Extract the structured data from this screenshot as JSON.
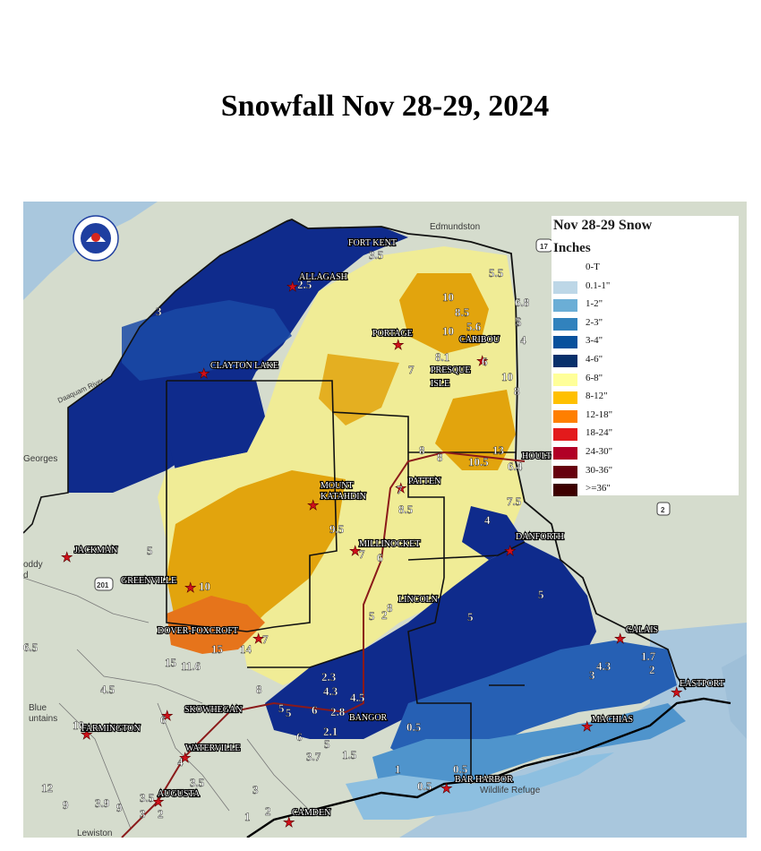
{
  "title": "Snowfall Nov 28-29, 2024",
  "legend": {
    "title": "Nov 28-29 Snow",
    "units": "Inches",
    "items": [
      {
        "label": "0-T",
        "color": "#ffffff"
      },
      {
        "label": "0.1-1\"",
        "color": "#bdd7e7"
      },
      {
        "label": "1-2\"",
        "color": "#6baed6"
      },
      {
        "label": "2-3\"",
        "color": "#3182bd"
      },
      {
        "label": "3-4\"",
        "color": "#08519c"
      },
      {
        "label": "4-6\"",
        "color": "#08306b"
      },
      {
        "label": "6-8\"",
        "color": "#ffff99"
      },
      {
        "label": "8-12\"",
        "color": "#ffc000"
      },
      {
        "label": "12-18\"",
        "color": "#ff7f00"
      },
      {
        "label": "18-24\"",
        "color": "#e31a1c"
      },
      {
        "label": "24-30\"",
        "color": "#b10026"
      },
      {
        "label": "30-36\"",
        "color": "#67000d"
      },
      {
        "label": ">=36\"",
        "color": "#3d0000"
      }
    ]
  },
  "basemap_labels": [
    "Edmundston",
    "Georges",
    "Daaquam River",
    "Blue",
    "untains",
    "Wildlife Refuge",
    "oddy",
    "d",
    "Lewiston"
  ],
  "highways": [
    "17",
    "201",
    "2"
  ],
  "cities": [
    "FORT KENT",
    "ALLAGASH",
    "PORTAGE",
    "CARIBOU",
    "PRESQUE",
    "ISLE",
    "CLAYTON LAKE",
    "HOULTON",
    "PATTEN",
    "MOUNT",
    "KATAHDIN",
    "MILLINOCKET",
    "DANFORTH",
    "JACKMAN",
    "GREENVILLE",
    "LINCOLN",
    "DOVER-FOXCROFT",
    "CALAIS",
    "EASTPORT",
    "SKOWHEGAN",
    "BANGOR",
    "MACHIAS",
    "FARMINGTON",
    "WATERVILLE",
    "AUGUSTA",
    "BAR HARBOR",
    "CAMDEN"
  ],
  "observations": [
    "3.5",
    "2.5",
    "5.5",
    "6.8",
    "5",
    "10",
    "8.5",
    "10",
    "5.6",
    "5",
    "4",
    "3",
    "8.1",
    "6",
    "7",
    "10",
    "8",
    "8",
    "8",
    "13",
    "10.5",
    "6.4",
    "7",
    "8.5",
    "7.5",
    "4",
    "9.5",
    "7",
    "6",
    "5",
    "10",
    "8",
    "5",
    "2",
    "5",
    "5",
    "15",
    "14",
    "7",
    "15",
    "11.6",
    "6.5",
    "4.5",
    "8",
    "2.3",
    "4.3",
    "4.5",
    "5",
    "5",
    "6",
    "2.8",
    "6",
    "2.1",
    "5",
    "0.5",
    "3.7",
    "1.5",
    "1",
    "0.5",
    "0.5",
    "3",
    "4.3",
    "1.7",
    "2",
    "10",
    "6",
    "4",
    "3.5",
    "3",
    "3.5",
    "12",
    "9",
    "3.9",
    "9",
    "1",
    "2",
    "3",
    "2"
  ]
}
